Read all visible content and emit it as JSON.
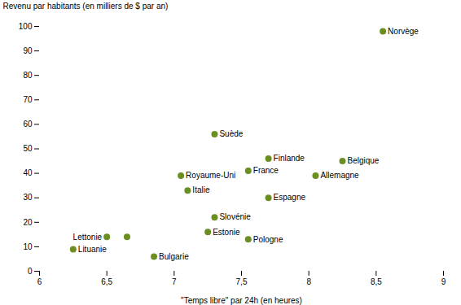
{
  "chart_data": {
    "type": "scatter",
    "x": [
      8.55,
      7.3,
      7.7,
      8.25,
      7.55,
      8.05,
      7.05,
      7.1,
      7.7,
      7.3,
      7.25,
      7.55,
      6.5,
      6.85,
      6.25,
      6.65
    ],
    "values": [
      98,
      56,
      46,
      45,
      41,
      39,
      39,
      33,
      30,
      22,
      16,
      13,
      14,
      6,
      9,
      14
    ],
    "labels": [
      "Norvège",
      "Suède",
      "Finlande",
      "Belgique",
      "France",
      "Allemagne",
      "Royaume-Uni",
      "Italie",
      "Espagne",
      "Slovénie",
      "Estonie",
      "Pologne",
      "Lettonie",
      "Bulgarie",
      "Lituanie",
      null
    ],
    "color": "#6B8E23",
    "xlabel": "\"Temps libre\" par 24h (en heures)",
    "ylabel": "Revenu par habitants (en milliers de $ par an)",
    "xlim": [
      6,
      9
    ],
    "ylim": [
      0,
      100
    ],
    "xticks": [
      6,
      {
        "value": 6.5,
        "label": "6,5"
      },
      7,
      {
        "value": 7.5,
        "label": "7,5"
      },
      8,
      {
        "value": 8.5,
        "label": "8,5"
      },
      9
    ],
    "yticks": [
      0,
      10,
      20,
      30,
      40,
      50,
      60,
      70,
      80,
      90,
      100
    ],
    "grid": false
  }
}
